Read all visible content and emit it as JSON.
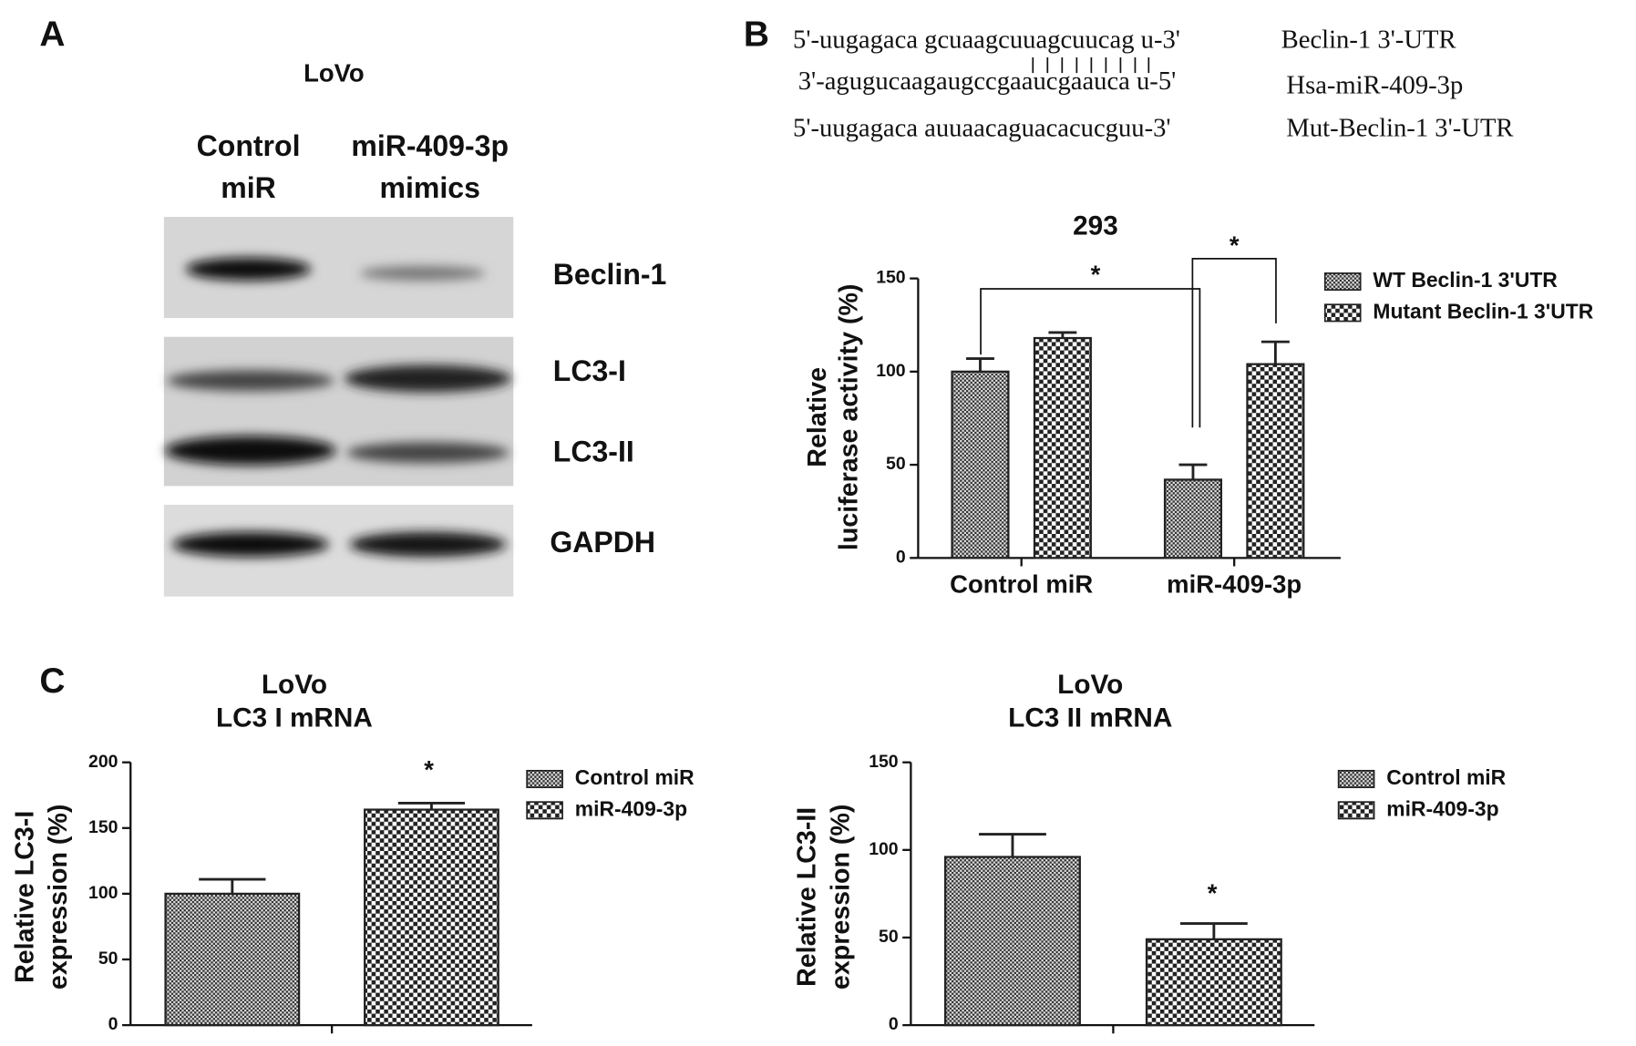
{
  "panel_a": {
    "letter": "A",
    "cell_line": "LoVo",
    "lanes": [
      [
        "Control",
        "miR"
      ],
      [
        "miR-409-3p",
        "mimics"
      ]
    ],
    "bands": [
      "Beclin-1",
      "LC3-I",
      "LC3-II",
      "GAPDH"
    ]
  },
  "panel_b": {
    "letter": "B",
    "sequences": [
      {
        "seq": "5'-uugagaca gcuaagcuuagcuucag u-3'",
        "label": "Beclin-1 3'-UTR"
      },
      {
        "seq": "3'-agugucaagaugccgaaucgaauca u-5'",
        "label": "Hsa-miR-409-3p"
      },
      {
        "seq": "5'-uugagaca auuaacaguacacucguu-3'",
        "label": "Mut-Beclin-1 3'-UTR"
      }
    ]
  },
  "panel_c": {
    "letter": "C"
  },
  "chart_data": [
    {
      "type": "bar",
      "title": [
        "293"
      ],
      "ylabel": [
        "Relative",
        "luciferase activity (%)"
      ],
      "categories": [
        "Control miR",
        "miR-409-3p"
      ],
      "series": [
        {
          "name": "WT Beclin-1 3'UTR",
          "color": "#222",
          "pattern": "fine",
          "values": [
            100,
            42
          ],
          "errors": [
            7,
            8
          ]
        },
        {
          "name": "Mutant Beclin-1 3'UTR",
          "color": "#222",
          "pattern": "coarse",
          "values": [
            118,
            104
          ],
          "errors": [
            3,
            12
          ]
        }
      ],
      "ylim": [
        0,
        150
      ],
      "yticks": [
        0,
        50,
        100,
        150
      ],
      "annotations": [
        "*",
        "*"
      ]
    },
    {
      "type": "bar",
      "title": [
        "LoVo",
        "LC3 I mRNA"
      ],
      "ylabel": [
        "Relative LC3-I",
        "expression (%)"
      ],
      "categories": [
        null
      ],
      "series": [
        {
          "name": "Control miR",
          "color": "#222",
          "pattern": "fine",
          "values": [
            100
          ],
          "errors": [
            11
          ]
        },
        {
          "name": "miR-409-3p",
          "color": "#222",
          "pattern": "coarse",
          "values": [
            164
          ],
          "errors": [
            5
          ]
        }
      ],
      "ylim": [
        0,
        200
      ],
      "yticks": [
        0,
        50,
        100,
        150,
        200
      ],
      "annotations": [
        "*"
      ]
    },
    {
      "type": "bar",
      "title": [
        "LoVo",
        "LC3 II mRNA"
      ],
      "ylabel": [
        "Relative LC3-II",
        "expression (%)"
      ],
      "categories": [
        null
      ],
      "series": [
        {
          "name": "Control miR",
          "color": "#222",
          "pattern": "fine",
          "values": [
            96
          ],
          "errors": [
            13
          ]
        },
        {
          "name": "miR-409-3p",
          "color": "#222",
          "pattern": "coarse",
          "values": [
            49
          ],
          "errors": [
            9
          ]
        }
      ],
      "ylim": [
        0,
        150
      ],
      "yticks": [
        0,
        50,
        100,
        150
      ],
      "annotations": [
        "*"
      ]
    }
  ]
}
